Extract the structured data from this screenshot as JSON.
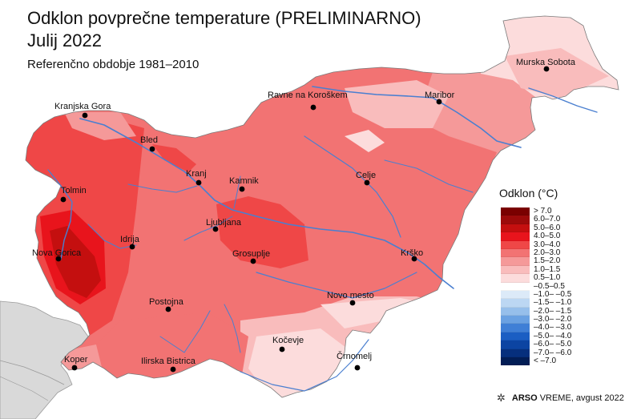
{
  "title_line1": "Odklon povprečne temperature (PRELIMINARNO)",
  "title_line2": "Julij 2022",
  "subtitle": "Referenčno obdobje 1981–2010",
  "legend": {
    "title": "Odklon (°C)",
    "classes": [
      {
        "label": "> 7.0",
        "color": "#7a0000"
      },
      {
        "label": "6.0–7.0",
        "color": "#9c0a0a"
      },
      {
        "label": "5.0–6.0",
        "color": "#c40f0f"
      },
      {
        "label": "4.0–5.0",
        "color": "#e8141c"
      },
      {
        "label": "3.0–4.0",
        "color": "#ef4747"
      },
      {
        "label": "2.0–3.0",
        "color": "#f27373"
      },
      {
        "label": "1.5–2.0",
        "color": "#f59999"
      },
      {
        "label": "1.0–1.5",
        "color": "#f9bcbc"
      },
      {
        "label": "0.5–1.0",
        "color": "#fcdcdc"
      },
      {
        "label": "–0.5–0.5",
        "color": "#ffffff"
      },
      {
        "label": "–1.0– –0.5",
        "color": "#dceaf8"
      },
      {
        "label": "–1.5– –1.0",
        "color": "#bcd7f3"
      },
      {
        "label": "–2.0– –1.5",
        "color": "#96bfeb"
      },
      {
        "label": "–3.0– –2.0",
        "color": "#6aa1e2"
      },
      {
        "label": "–4.0– –3.0",
        "color": "#3f7fd6"
      },
      {
        "label": "–5.0– –4.0",
        "color": "#1b5ec3"
      },
      {
        "label": "–6.0– –5.0",
        "color": "#0c44a2"
      },
      {
        "label": "–7.0– –6.0",
        "color": "#062f7d"
      },
      {
        "label": "< –7.0",
        "color": "#021d55"
      }
    ]
  },
  "cities": [
    {
      "name": "Murska Sobota"
    },
    {
      "name": "Ravne na Koroškem"
    },
    {
      "name": "Maribor"
    },
    {
      "name": "Kranjska Gora"
    },
    {
      "name": "Bled"
    },
    {
      "name": "Kranj"
    },
    {
      "name": "Kamnik"
    },
    {
      "name": "Celje"
    },
    {
      "name": "Tolmin"
    },
    {
      "name": "Ljubljana"
    },
    {
      "name": "Idrija"
    },
    {
      "name": "Nova Gorica"
    },
    {
      "name": "Grosuplje"
    },
    {
      "name": "Krško"
    },
    {
      "name": "Novo mesto"
    },
    {
      "name": "Postojna"
    },
    {
      "name": "Kočevje"
    },
    {
      "name": "Koper"
    },
    {
      "name": "Ilirska Bistrica"
    },
    {
      "name": "Črnomelj"
    }
  ],
  "footer": {
    "brand": "ARSO",
    "brand2": "VREME",
    "date": ", avgust 2022"
  },
  "colors": {
    "neighbor_land": "#d9d9d9",
    "sea": "#ffffff",
    "river": "#4a7fd0",
    "border": "#7a7a7a"
  },
  "icons": {
    "logo": "arso-logo-icon"
  }
}
